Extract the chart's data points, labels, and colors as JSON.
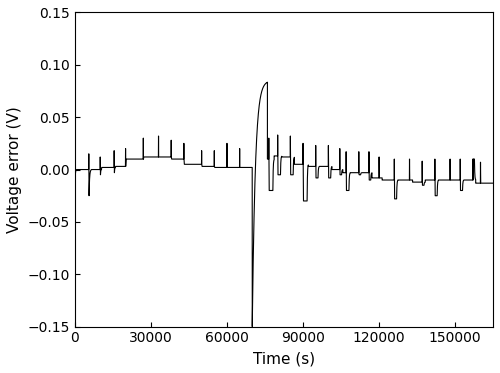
{
  "xlim": [
    0,
    165000
  ],
  "ylim": [
    -0.15,
    0.15
  ],
  "xlabel": "Time (s)",
  "ylabel": "Voltage error (V)",
  "xticks": [
    0,
    30000,
    60000,
    90000,
    120000,
    150000
  ],
  "yticks": [
    -0.15,
    -0.1,
    -0.05,
    0.0,
    0.05,
    0.1,
    0.15
  ],
  "line_color": "#000000",
  "line_width": 0.8,
  "background_color": "#ffffff",
  "figsize": [
    5.0,
    3.73
  ],
  "dpi": 100
}
